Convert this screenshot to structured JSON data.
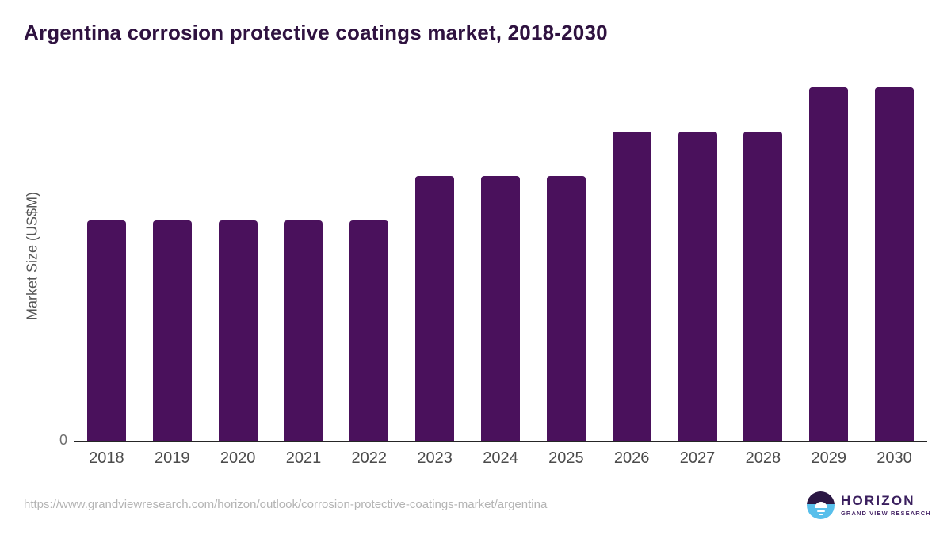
{
  "chart": {
    "title": "Argentina corrosion protective coatings market, 2018-2030",
    "y_axis": {
      "label": "Market Size (US$M)",
      "tick_labels": [
        "0"
      ]
    },
    "colors": {
      "bar": "#4A115C",
      "title": "#2F1240",
      "axis_line": "#262626",
      "tick_label": "#4B4B4B",
      "axis_label": "#565656",
      "url_text": "#B4B4B4"
    }
  },
  "chart_data": {
    "type": "bar",
    "title": "Argentina corrosion protective coatings market, 2018-2030",
    "xlabel": "",
    "ylabel": "Market Size (US$M)",
    "categories": [
      "2018",
      "2019",
      "2020",
      "2021",
      "2022",
      "2023",
      "2024",
      "2025",
      "2026",
      "2027",
      "2028",
      "2029",
      "2030"
    ],
    "values": [
      62.3,
      62.3,
      62.3,
      62.3,
      62.3,
      74.9,
      74.9,
      74.9,
      87.4,
      87.4,
      87.4,
      100,
      100
    ],
    "value_scale": "relative height, tallest bars (2029-2030) = 100; no numeric data labels shown on chart",
    "y_axis_ticks": [
      "0"
    ],
    "ylim_min": 0,
    "grid": false,
    "legend": false,
    "bar_color": "#4A115C"
  },
  "footer": {
    "source_url": "https://www.grandviewresearch.com/horizon/outlook/corrosion-protective-coatings-market/argentina",
    "logo": {
      "title": "HORIZON",
      "subtitle": "GRAND VIEW RESEARCH",
      "colors": {
        "circle_top": "#2B1744",
        "circle_bottom": "#58BFEB",
        "text": "#3A1F5E"
      }
    }
  }
}
